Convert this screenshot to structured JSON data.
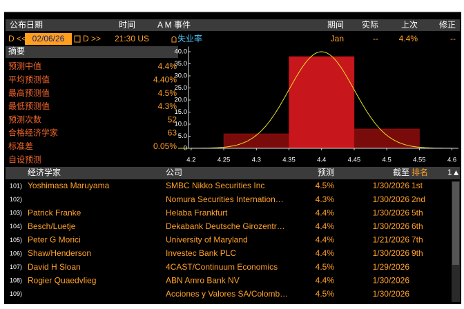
{
  "header": {
    "columns": [
      "公布日期",
      "时间",
      "A M 事件",
      "期间",
      "实际",
      "上次",
      "修正"
    ]
  },
  "event": {
    "nav_prev": "D <<",
    "date": "02/06/26",
    "nav_next": "D >>",
    "time": "21:30 US",
    "name": "失业率",
    "period": "Jan",
    "actual": "--",
    "previous": "4.4%",
    "revised": "--"
  },
  "summary": {
    "title": "摘要",
    "rows": [
      [
        "预测中值",
        "4.4%"
      ],
      [
        "平均预测值",
        "4.40%"
      ],
      [
        "最高预测值",
        "4.5%"
      ],
      [
        "最低预测值",
        "4.3%"
      ],
      [
        "预测次数",
        "52"
      ],
      [
        "合格经济学家",
        "63"
      ],
      [
        "标准差",
        "0.05%"
      ],
      [
        "自设预测"
      ]
    ]
  },
  "chart_data": {
    "type": "histogram",
    "bins": [
      4.25,
      4.35,
      4.45,
      4.55
    ],
    "counts": [
      6,
      38,
      8
    ],
    "colors": [
      "#7a0b0b",
      "#c8161d",
      "#7a0b0b"
    ],
    "xlim": [
      4.18,
      4.61
    ],
    "xticks": [
      4.2,
      4.25,
      4.3,
      4.35,
      4.4,
      4.45,
      4.5,
      4.55,
      4.6
    ],
    "ylim": [
      0,
      41
    ],
    "yticks": [
      0,
      {
        "value": 5,
        "label": "5.0"
      },
      {
        "value": 10,
        "label": "10.0"
      },
      {
        "value": 15,
        "label": "15.0"
      },
      {
        "value": 20,
        "label": "20.0"
      },
      {
        "value": 25,
        "label": "25.0"
      },
      {
        "value": 30,
        "label": "30.0"
      },
      {
        "value": 35,
        "label": "35.0"
      },
      {
        "value": 40,
        "label": "40.0"
      }
    ],
    "curve": {
      "mean": 4.4,
      "sd": 0.05,
      "peak": 40,
      "color": "#e6e02a"
    }
  },
  "table": {
    "columns": [
      "经济学家",
      "公司",
      "预测",
      "截至",
      "排名"
    ],
    "sort": "1▲",
    "rows": [
      {
        "id": "101)",
        "economist": "Yoshimasa Maruyama",
        "firm": "SMBC Nikko Securities Inc",
        "forecast": "4.5%",
        "as_of": "1/30/2026",
        "rank": "1st"
      },
      {
        "id": "102)",
        "firm": "Nomura Securities Internation…",
        "forecast": "4.3%",
        "as_of": "1/30/2026",
        "rank": "2nd"
      },
      {
        "id": "103)",
        "economist": "Patrick Franke",
        "firm": "Helaba Frankfurt",
        "forecast": "4.4%",
        "as_of": "1/30/2026",
        "rank": "5th"
      },
      {
        "id": "104)",
        "economist": "Besch/Luetje",
        "firm": "Dekabank Deutsche Girozentr…",
        "forecast": "4.4%",
        "as_of": "1/30/2026",
        "rank": "6th"
      },
      {
        "id": "105)",
        "economist": "Peter G Morici",
        "firm": "University of Maryland",
        "forecast": "4.4%",
        "as_of": "1/21/2026",
        "rank": "7th"
      },
      {
        "id": "106)",
        "economist": "Shaw/Henderson",
        "firm": "Investec Bank PLC",
        "forecast": "4.4%",
        "as_of": "1/30/2026",
        "rank": "9th"
      },
      {
        "id": "107)",
        "economist": "David H Sloan",
        "firm": "4CAST/Continuum Economics",
        "forecast": "4.5%",
        "as_of": "1/29/2026"
      },
      {
        "id": "108)",
        "economist": "Rogier Quaedvlieg",
        "firm": "ABN Amro Bank NV",
        "forecast": "4.4%",
        "as_of": "1/30/2026"
      },
      {
        "id": "109)",
        "firm": "Acciones y Valores SA/Colomb…",
        "forecast": "4.5%",
        "as_of": "1/30/2026"
      }
    ]
  }
}
